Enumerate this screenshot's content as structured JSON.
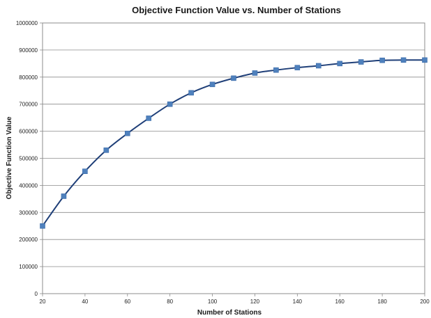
{
  "chart_data": {
    "type": "line",
    "title": "Objective Function Value vs. Number of Stations",
    "xlabel": "Number of Stations",
    "ylabel": "Objective Function Value",
    "xlim": [
      20,
      200
    ],
    "ylim": [
      0,
      1000000
    ],
    "x_ticks": [
      "20",
      "40",
      "60",
      "80",
      "100",
      "120",
      "140",
      "160",
      "180",
      "200"
    ],
    "y_ticks": [
      "0",
      "100000",
      "200000",
      "300000",
      "400000",
      "500000",
      "600000",
      "700000",
      "800000",
      "900000",
      "1000000"
    ],
    "grid": "horizontal",
    "legend": "none",
    "series": [
      {
        "x": [
          20,
          30,
          40,
          50,
          60,
          70,
          80,
          90,
          100,
          110,
          120,
          130,
          140,
          150,
          160,
          170,
          180,
          190,
          200
        ],
        "y": [
          250000,
          360000,
          452000,
          530000,
          592000,
          648000,
          700000,
          742000,
          773000,
          796000,
          815000,
          826000,
          835000,
          842000,
          850000,
          856000,
          862000,
          863000,
          863000
        ],
        "color": "#1f3f78",
        "marker_color": "#4f81bd",
        "marker": "square",
        "smooth": true
      }
    ]
  }
}
